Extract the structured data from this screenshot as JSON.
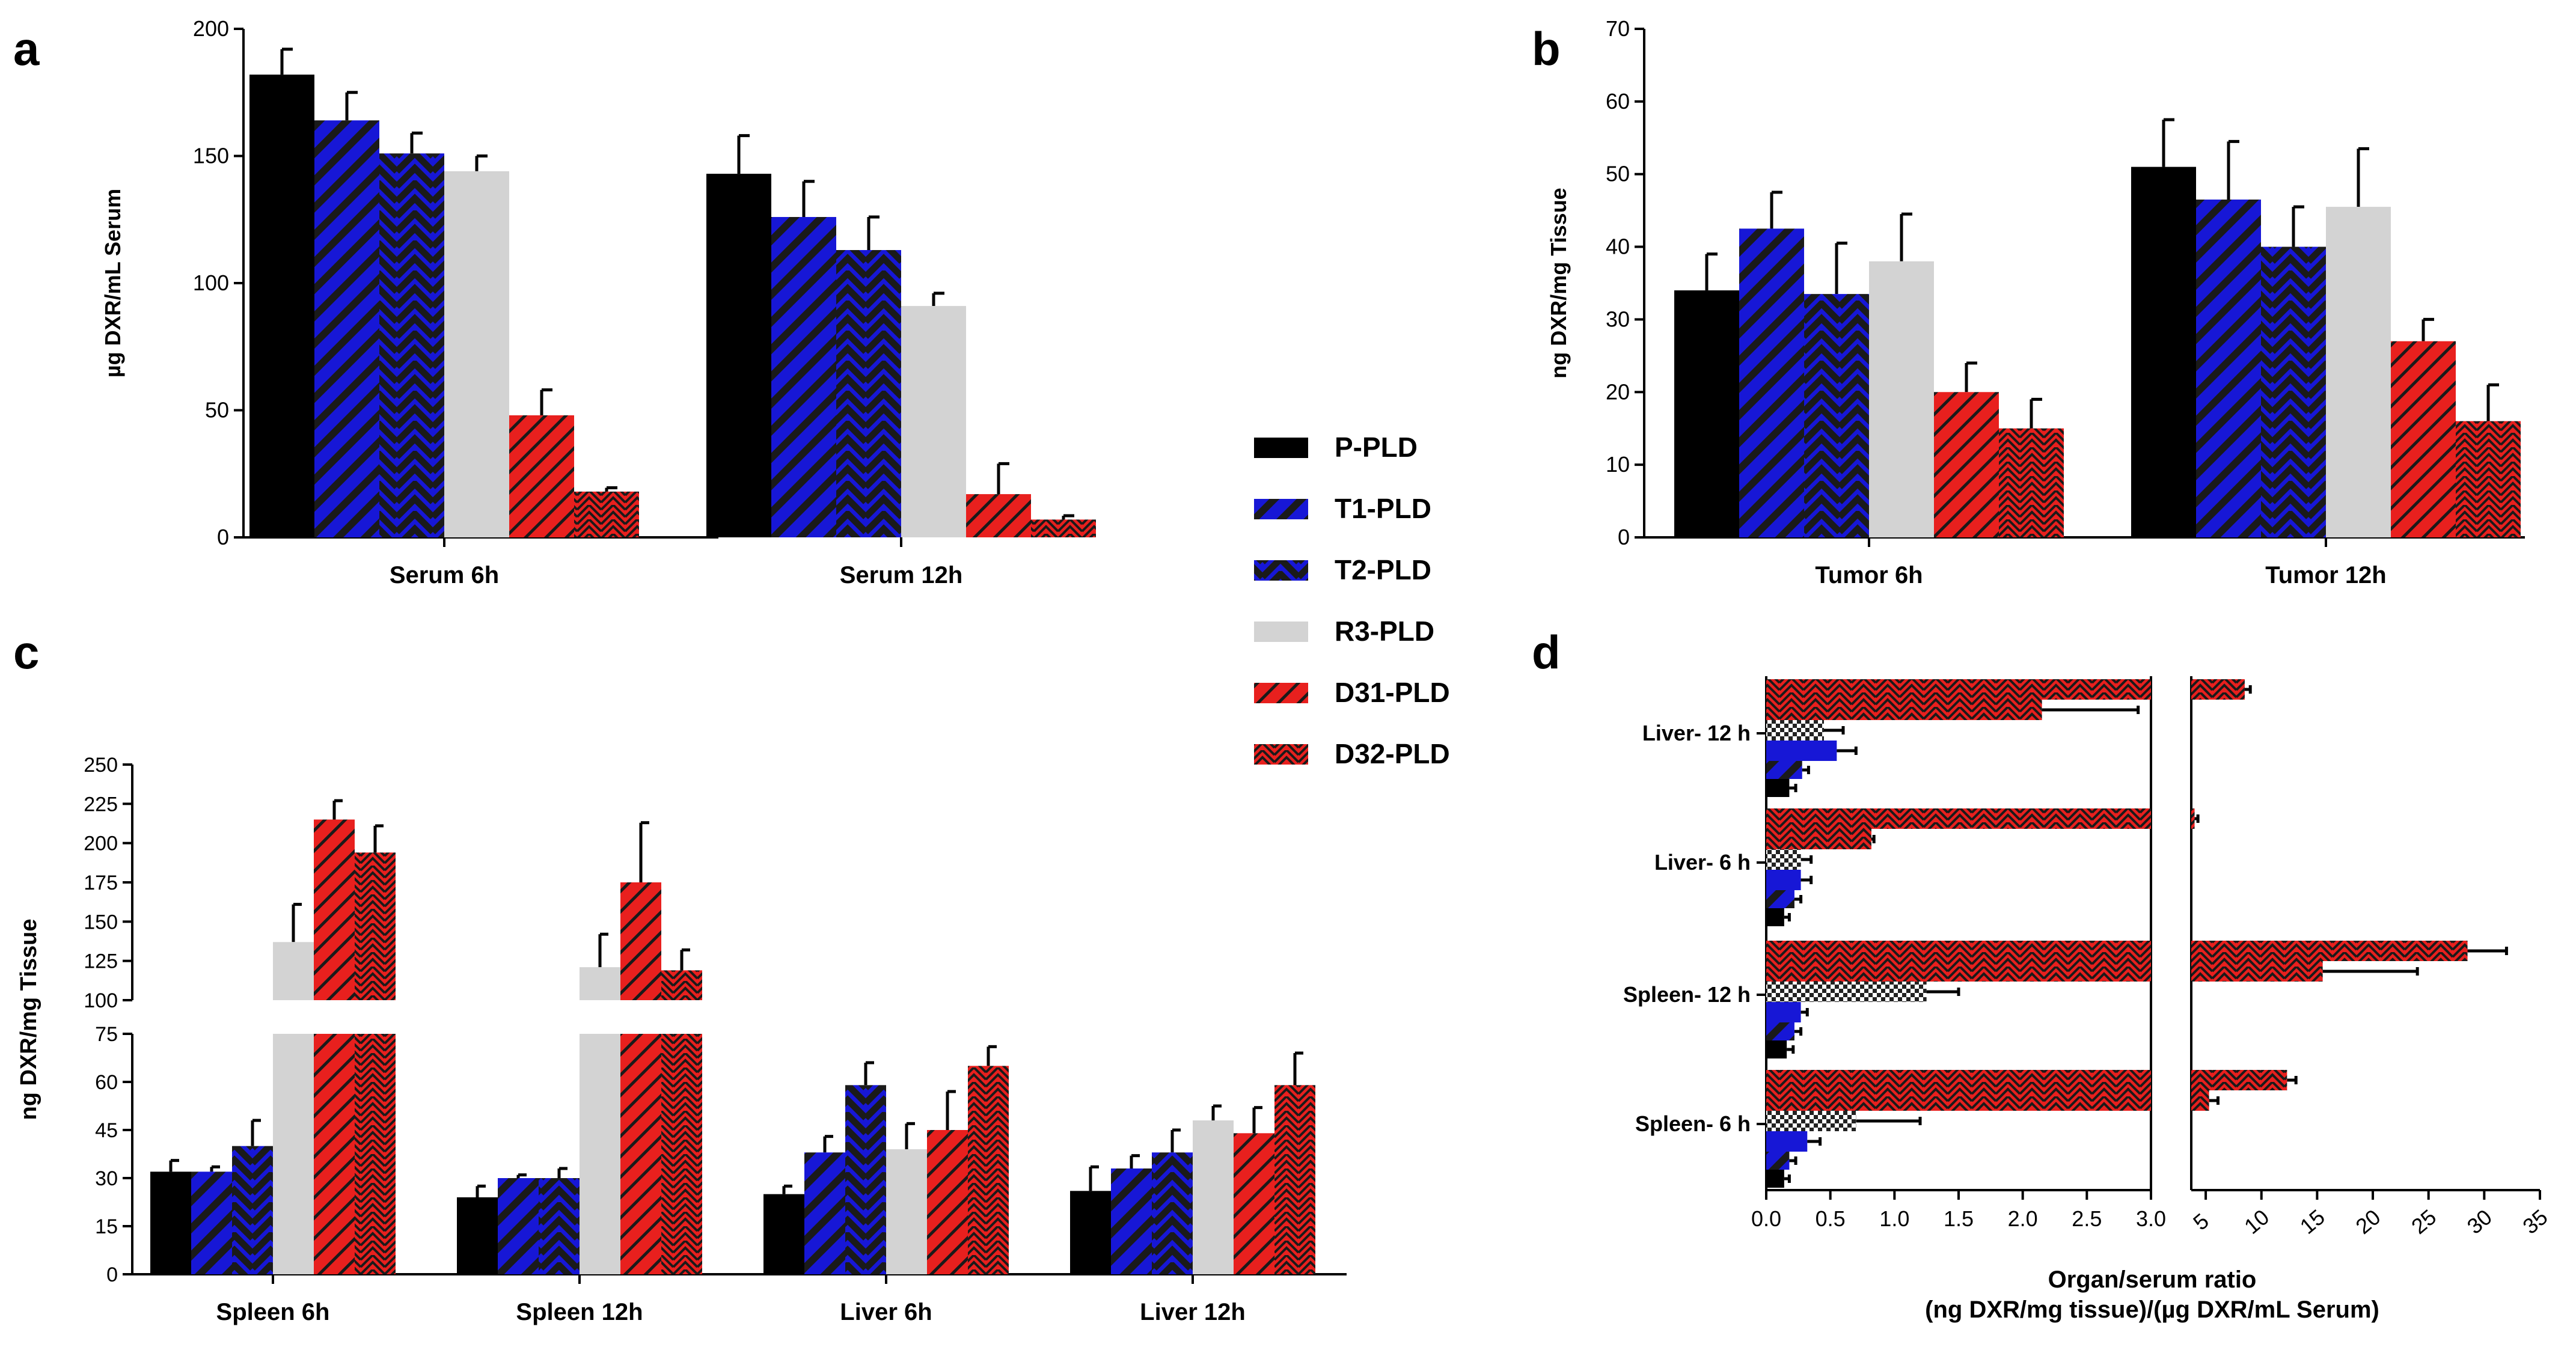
{
  "colors": {
    "P-PLD": "#000000",
    "T1-PLD": "#1717d6",
    "T2-PLD": "#1717d6",
    "R3-PLD": "#d3d3d3",
    "D31-PLD": "#e8201e",
    "D32-PLD": "#e8201e",
    "stripe": "#1e1e1e",
    "d_series_T2": "#1717d6",
    "d_series_checker": "#777777"
  },
  "legend": {
    "items": [
      "P-PLD",
      "T1-PLD",
      "T2-PLD",
      "R3-PLD",
      "D31-PLD",
      "D32-PLD"
    ]
  },
  "chart_data": [
    {
      "panel": "a",
      "type": "bar",
      "ylabel": "µg DXR/mL Serum",
      "ylim": [
        0,
        200
      ],
      "yticks": [
        0,
        50,
        100,
        150,
        200
      ],
      "categories": [
        "Serum 6h",
        "Serum 12h"
      ],
      "series": [
        {
          "name": "P-PLD",
          "values": [
            182,
            143
          ],
          "errors": [
            10,
            15
          ]
        },
        {
          "name": "T1-PLD",
          "values": [
            164,
            126
          ],
          "errors": [
            11,
            14
          ]
        },
        {
          "name": "T2-PLD",
          "values": [
            151,
            113
          ],
          "errors": [
            8,
            13
          ]
        },
        {
          "name": "R3-PLD",
          "values": [
            144,
            91
          ],
          "errors": [
            6,
            5
          ]
        },
        {
          "name": "D31-PLD",
          "values": [
            48,
            17
          ],
          "errors": [
            10,
            12
          ]
        },
        {
          "name": "D32-PLD",
          "values": [
            18,
            7
          ],
          "errors": [
            1.5,
            1.5
          ]
        }
      ]
    },
    {
      "panel": "b",
      "type": "bar",
      "ylabel": "ng DXR/mg Tissue",
      "ylim": [
        0,
        70
      ],
      "yticks": [
        0,
        10,
        20,
        30,
        40,
        50,
        60,
        70
      ],
      "categories": [
        "Tumor 6h",
        "Tumor 12h"
      ],
      "series": [
        {
          "name": "P-PLD",
          "values": [
            34,
            51
          ],
          "errors": [
            5,
            6.5
          ]
        },
        {
          "name": "T1-PLD",
          "values": [
            42.5,
            46.5
          ],
          "errors": [
            5,
            8
          ]
        },
        {
          "name": "T2-PLD",
          "values": [
            33.5,
            40
          ],
          "errors": [
            7,
            5.5
          ]
        },
        {
          "name": "R3-PLD",
          "values": [
            38,
            45.5
          ],
          "errors": [
            6.5,
            8
          ]
        },
        {
          "name": "D31-PLD",
          "values": [
            20,
            27
          ],
          "errors": [
            4,
            3
          ]
        },
        {
          "name": "D32-PLD",
          "values": [
            15,
            16
          ],
          "errors": [
            4,
            5
          ]
        }
      ]
    },
    {
      "panel": "c",
      "type": "bar",
      "ylabel": "ng DXR/mg Tissue",
      "axis_break": [
        75,
        100
      ],
      "lower_ylim": [
        0,
        75
      ],
      "lower_yticks": [
        0,
        15,
        30,
        45,
        60,
        75
      ],
      "upper_ylim": [
        100,
        250
      ],
      "upper_yticks": [
        100,
        125,
        150,
        175,
        200,
        225,
        250
      ],
      "categories": [
        "Spleen 6h",
        "Spleen 12h",
        "Liver 6h",
        "Liver 12h"
      ],
      "series": [
        {
          "name": "P-PLD",
          "values": [
            32,
            24,
            25,
            26
          ],
          "errors": [
            3.5,
            3.5,
            2.5,
            7.5
          ]
        },
        {
          "name": "T1-PLD",
          "values": [
            32,
            30,
            38,
            33
          ],
          "errors": [
            1.5,
            1,
            5,
            4
          ]
        },
        {
          "name": "T2-PLD",
          "values": [
            40,
            30,
            59,
            38
          ],
          "errors": [
            8,
            3,
            7,
            7
          ]
        },
        {
          "name": "R3-PLD",
          "values": [
            137,
            121,
            39,
            48
          ],
          "errors": [
            24,
            21,
            8,
            4.5
          ]
        },
        {
          "name": "D31-PLD",
          "values": [
            215,
            175,
            45,
            44
          ],
          "errors": [
            12,
            38,
            12,
            8
          ]
        },
        {
          "name": "D32-PLD",
          "values": [
            194,
            119,
            65,
            59
          ],
          "errors": [
            17,
            13,
            6,
            10
          ]
        }
      ]
    },
    {
      "panel": "d",
      "type": "bar",
      "orientation": "horizontal",
      "xlabel": "Organ/serum ratio",
      "xlabel2": "(ng DXR/mg tissue)/(µg DXR/mL Serum)",
      "axis_break": [
        3,
        3.7
      ],
      "left_xlim": [
        0,
        3
      ],
      "left_xticks": [
        "0.0",
        "0.5",
        "1.0",
        "1.5",
        "2.0",
        "2.5",
        "3.0"
      ],
      "right_xlim": [
        3.7,
        35
      ],
      "right_xticks": [
        5,
        10,
        15,
        20,
        25,
        30,
        35
      ],
      "categories": [
        "Liver- 12 h",
        "Liver- 6 h",
        "Spleen- 12 h",
        "Spleen- 6 h"
      ],
      "series": [
        {
          "name": "D32-PLD",
          "values": [
            8.5,
            4.0,
            28.5,
            12.3
          ],
          "errors": [
            0.5,
            0.3,
            3.5,
            0.8
          ]
        },
        {
          "name": "D31-PLD",
          "values": [
            2.15,
            0.82,
            15.5,
            5.3
          ],
          "errors": [
            0.75,
            0.02,
            8.5,
            0.8
          ]
        },
        {
          "name": "R3-PLD",
          "values": [
            0.45,
            0.27,
            1.25,
            0.7
          ],
          "errors": [
            0.15,
            0.08,
            0.25,
            0.5
          ]
        },
        {
          "name": "T2-PLD",
          "values": [
            0.55,
            0.27,
            0.27,
            0.32
          ],
          "errors": [
            0.15,
            0.08,
            0.05,
            0.1
          ]
        },
        {
          "name": "T1-PLD",
          "values": [
            0.28,
            0.22,
            0.22,
            0.18
          ],
          "errors": [
            0.05,
            0.05,
            0.05,
            0.05
          ]
        },
        {
          "name": "P-PLD",
          "values": [
            0.18,
            0.14,
            0.16,
            0.14
          ],
          "errors": [
            0.05,
            0.04,
            0.05,
            0.04
          ]
        }
      ]
    }
  ],
  "panel_labels": [
    "a",
    "b",
    "c",
    "d"
  ]
}
